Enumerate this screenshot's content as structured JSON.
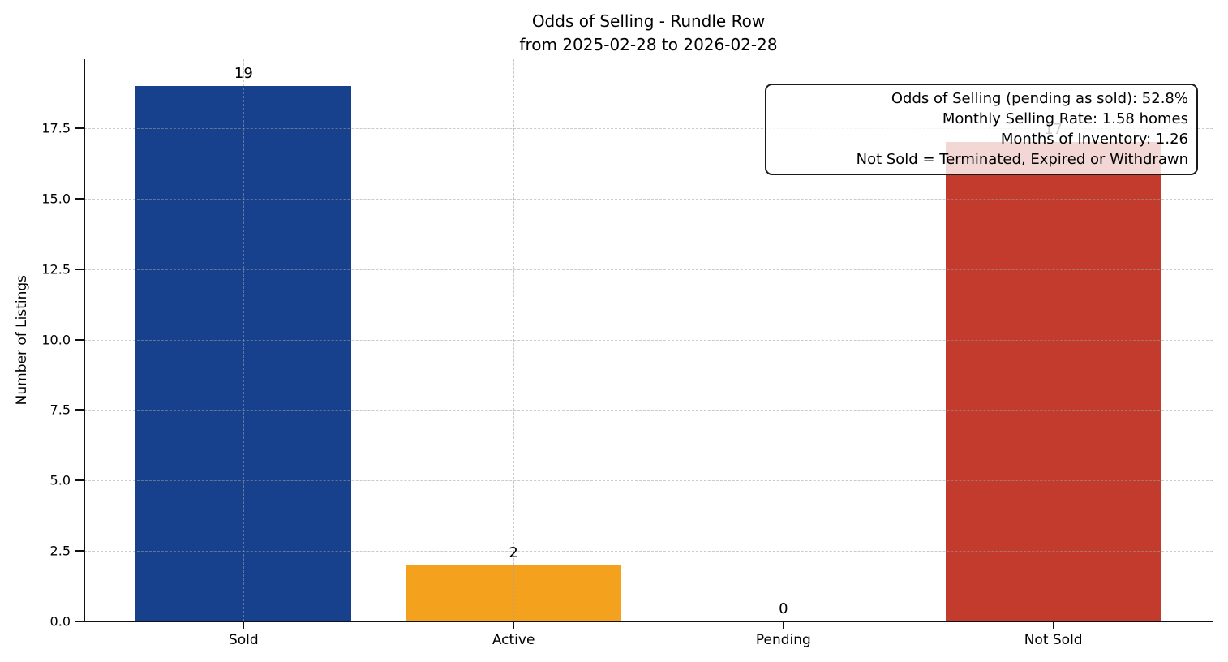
{
  "chart_data": {
    "type": "bar",
    "title": "Odds of Selling - Rundle Row\nfrom 2025-02-28 to 2026-02-28",
    "title_lines": {
      "line1": "Odds of Selling - Rundle Row",
      "line2": "from 2025-02-28 to 2026-02-28"
    },
    "categories": [
      "Sold",
      "Active",
      "Pending",
      "Not Sold"
    ],
    "values": [
      19,
      2,
      0,
      17
    ],
    "bar_colors": [
      "#17418D",
      "#F4A11D",
      null,
      "#C23B2C"
    ],
    "xlabel": "",
    "ylabel": "Number of Listings",
    "ylim": [
      0,
      19.95
    ],
    "yticks": [
      0,
      2.5,
      5,
      7.5,
      10,
      12.5,
      15,
      17.5
    ],
    "ytick_labels": [
      "0.0",
      "2.5",
      "5.0",
      "7.5",
      "10.0",
      "12.5",
      "15.0",
      "17.5"
    ],
    "grid": "dashed gridlines on both axes, drawn above bars",
    "legend": "none",
    "annotation_box": {
      "lines": [
        "Odds of Selling (pending as sold): 52.8%",
        "Monthly Selling Rate: 1.58 homes",
        "Months of Inventory: 1.26",
        "Not Sold = Terminated, Expired or Withdrawn"
      ],
      "position": "top-right, semi-transparent white, overlaps Not Sold bar and its value label"
    }
  }
}
